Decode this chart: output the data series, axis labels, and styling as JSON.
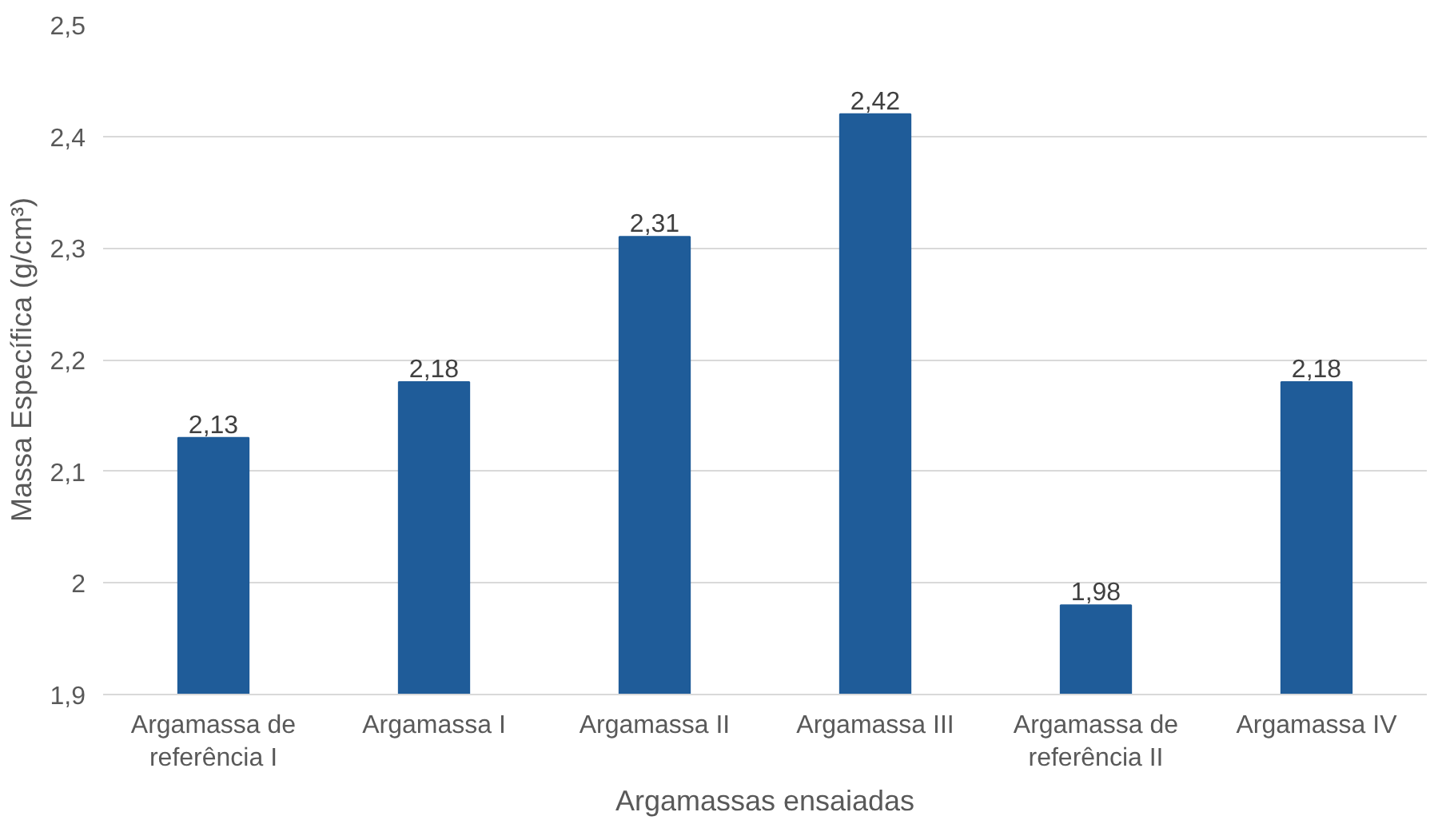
{
  "chart_data": {
    "type": "bar",
    "xlabel": "Argamassas ensaiadas",
    "ylabel": "Massa Específica (g/cm³)",
    "categories": [
      "Argamassa de referência I",
      "Argamassa I",
      "Argamassa II",
      "Argamassa III",
      "Argamassa de referência II",
      "Argamassa IV"
    ],
    "values": [
      2.13,
      2.18,
      2.31,
      2.42,
      1.98,
      2.18
    ],
    "value_labels": [
      "2,13",
      "2,18",
      "2,31",
      "2,42",
      "1,98",
      "2,18"
    ],
    "color": "#1f5c99",
    "ylim": [
      1.9,
      2.5
    ],
    "yticks": [
      {
        "value": 1.9,
        "label": "1,9"
      },
      2,
      {
        "value": 2.1,
        "label": "2,1"
      },
      {
        "value": 2.2,
        "label": "2,2"
      },
      {
        "value": 2.3,
        "label": "2,3"
      },
      {
        "value": 2.4,
        "label": "2,4"
      },
      {
        "value": 2.5,
        "label": "2,5"
      }
    ],
    "grid": "y"
  }
}
